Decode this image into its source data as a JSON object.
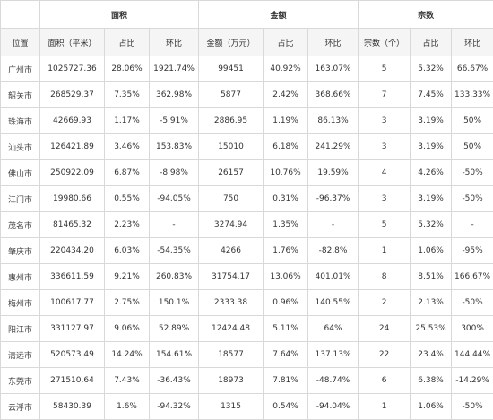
{
  "groups": {
    "area": "面积",
    "amount": "金额",
    "count": "宗数"
  },
  "columns": [
    "位置",
    "面积（平米）",
    "占比",
    "环比",
    "金额（万元）",
    "占比",
    "环比",
    "宗数（个）",
    "占比",
    "环比"
  ],
  "rows": [
    [
      "广州市",
      "1025727.36",
      "28.06%",
      "1921.74%",
      "99451",
      "40.92%",
      "163.07%",
      "5",
      "5.32%",
      "66.67%"
    ],
    [
      "韶关市",
      "268529.37",
      "7.35%",
      "362.98%",
      "5877",
      "2.42%",
      "368.66%",
      "7",
      "7.45%",
      "133.33%"
    ],
    [
      "珠海市",
      "42669.93",
      "1.17%",
      "-5.91%",
      "2886.95",
      "1.19%",
      "86.13%",
      "3",
      "3.19%",
      "50%"
    ],
    [
      "汕头市",
      "126421.89",
      "3.46%",
      "153.83%",
      "15010",
      "6.18%",
      "241.29%",
      "3",
      "3.19%",
      "50%"
    ],
    [
      "佛山市",
      "250922.09",
      "6.87%",
      "-8.98%",
      "26157",
      "10.76%",
      "19.59%",
      "4",
      "4.26%",
      "-50%"
    ],
    [
      "江门市",
      "19980.66",
      "0.55%",
      "-94.05%",
      "750",
      "0.31%",
      "-96.37%",
      "3",
      "3.19%",
      "-50%"
    ],
    [
      "茂名市",
      "81465.32",
      "2.23%",
      "-",
      "3274.94",
      "1.35%",
      "-",
      "5",
      "5.32%",
      "-"
    ],
    [
      "肇庆市",
      "220434.20",
      "6.03%",
      "-54.35%",
      "4266",
      "1.76%",
      "-82.8%",
      "1",
      "1.06%",
      "-95%"
    ],
    [
      "惠州市",
      "336611.59",
      "9.21%",
      "260.83%",
      "31754.17",
      "13.06%",
      "401.01%",
      "8",
      "8.51%",
      "166.67%"
    ],
    [
      "梅州市",
      "100617.77",
      "2.75%",
      "150.1%",
      "2333.38",
      "0.96%",
      "140.55%",
      "2",
      "2.13%",
      "-50%"
    ],
    [
      "阳江市",
      "331127.97",
      "9.06%",
      "52.89%",
      "12424.48",
      "5.11%",
      "64%",
      "24",
      "25.53%",
      "300%"
    ],
    [
      "清远市",
      "520573.49",
      "14.24%",
      "154.61%",
      "18577",
      "7.64%",
      "137.13%",
      "22",
      "23.4%",
      "144.44%"
    ],
    [
      "东莞市",
      "271510.64",
      "7.43%",
      "-36.43%",
      "18973",
      "7.81%",
      "-48.74%",
      "6",
      "6.38%",
      "-14.29%"
    ],
    [
      "云浮市",
      "58430.39",
      "1.6%",
      "-94.32%",
      "1315",
      "0.54%",
      "-94.04%",
      "1",
      "1.06%",
      "-50%"
    ]
  ]
}
